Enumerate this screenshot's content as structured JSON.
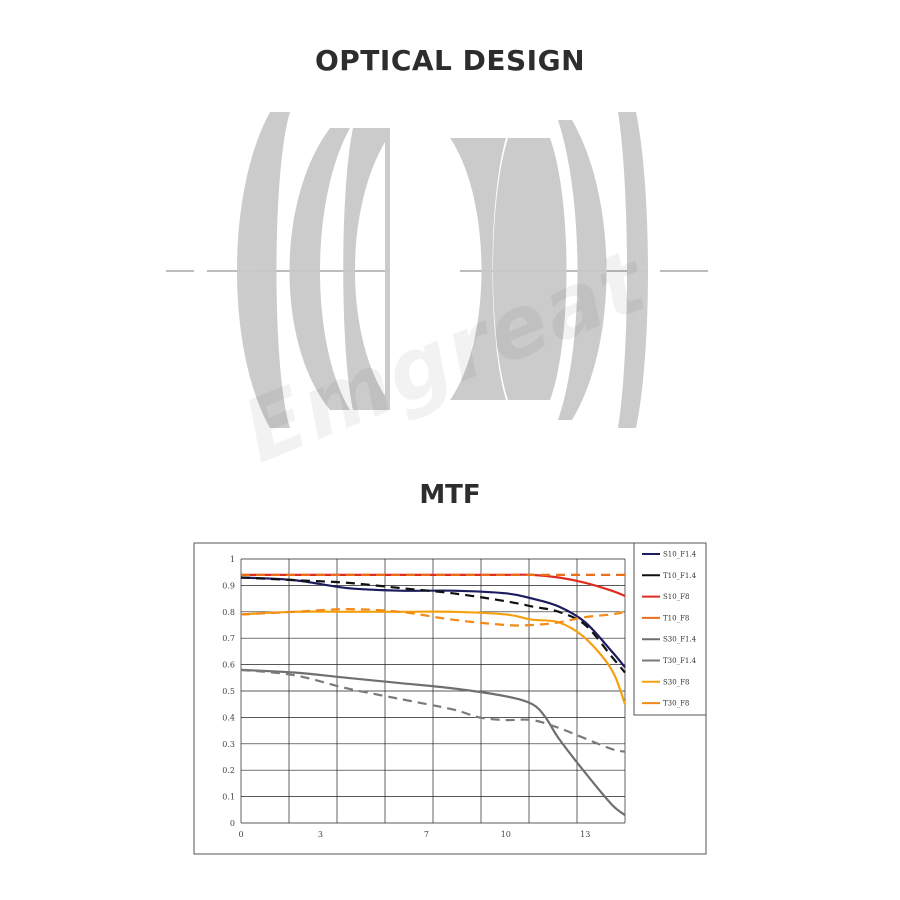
{
  "titles": {
    "optical": "OPTICAL DESIGN",
    "mtf": "MTF"
  },
  "watermark": "Emgreat",
  "colors": {
    "lens": "#c9c9c9",
    "axis_line": "#bdbdbd",
    "grid": "#222222"
  },
  "chart_data": {
    "type": "line",
    "xlim": [
      0,
      14.5
    ],
    "ylim": [
      0,
      1
    ],
    "x_ticks": [
      0,
      3,
      7,
      10,
      13
    ],
    "y_ticks": [
      0,
      0.1,
      0.2,
      0.3,
      0.4,
      0.5,
      0.6,
      0.7,
      0.8,
      0.9,
      1
    ],
    "grid": true,
    "legend_position": "right",
    "series": [
      {
        "name": "S10_F1.4",
        "color": "#1c1c5e",
        "dash": false,
        "x": [
          0,
          2,
          4,
          6,
          8,
          10,
          11,
          12,
          13,
          14,
          14.5
        ],
        "y": [
          0.93,
          0.92,
          0.89,
          0.88,
          0.88,
          0.87,
          0.85,
          0.82,
          0.76,
          0.65,
          0.59
        ]
      },
      {
        "name": "T10_F1.4",
        "color": "#111111",
        "dash": true,
        "x": [
          0,
          2,
          4,
          6,
          8,
          10,
          11,
          12,
          13,
          14,
          14.5
        ],
        "y": [
          0.93,
          0.92,
          0.91,
          0.89,
          0.87,
          0.84,
          0.82,
          0.8,
          0.75,
          0.63,
          0.57
        ]
      },
      {
        "name": "S10_F8",
        "color": "#e02b1f",
        "dash": false,
        "x": [
          0,
          2,
          4,
          6,
          8,
          10,
          11,
          12,
          13,
          14,
          14.5
        ],
        "y": [
          0.94,
          0.94,
          0.94,
          0.94,
          0.94,
          0.94,
          0.94,
          0.93,
          0.91,
          0.88,
          0.86
        ]
      },
      {
        "name": "T10_F8",
        "color": "#e8701a",
        "dash": true,
        "x": [
          0,
          2,
          4,
          6,
          8,
          10,
          11,
          12,
          13,
          14,
          14.5
        ],
        "y": [
          0.94,
          0.94,
          0.94,
          0.94,
          0.94,
          0.94,
          0.94,
          0.94,
          0.94,
          0.94,
          0.94
        ]
      },
      {
        "name": "S30_F1.4",
        "color": "#6f6f6f",
        "dash": false,
        "x": [
          0,
          2,
          4,
          6,
          8,
          10,
          11,
          11.5,
          12,
          13,
          14,
          14.5
        ],
        "y": [
          0.58,
          0.57,
          0.55,
          0.53,
          0.51,
          0.48,
          0.45,
          0.4,
          0.32,
          0.19,
          0.07,
          0.03
        ]
      },
      {
        "name": "T30_F1.4",
        "color": "#7a7a7a",
        "dash": true,
        "x": [
          0,
          2,
          4,
          6,
          8,
          9,
          10,
          11,
          12,
          13,
          14,
          14.5
        ],
        "y": [
          0.58,
          0.56,
          0.51,
          0.47,
          0.43,
          0.4,
          0.39,
          0.39,
          0.36,
          0.32,
          0.28,
          0.27
        ]
      },
      {
        "name": "S30_F8",
        "color": "#f5a00e",
        "dash": false,
        "x": [
          0,
          2,
          4,
          6,
          8,
          10,
          11,
          12,
          13,
          14,
          14.5
        ],
        "y": [
          0.79,
          0.8,
          0.8,
          0.8,
          0.8,
          0.79,
          0.77,
          0.76,
          0.7,
          0.58,
          0.45
        ]
      },
      {
        "name": "T30_F8",
        "color": "#f28a18",
        "dash": true,
        "x": [
          0,
          2,
          4,
          6,
          8,
          10,
          11,
          12,
          13,
          14,
          14.5
        ],
        "y": [
          0.79,
          0.8,
          0.81,
          0.8,
          0.77,
          0.75,
          0.75,
          0.76,
          0.78,
          0.79,
          0.8
        ]
      }
    ]
  }
}
